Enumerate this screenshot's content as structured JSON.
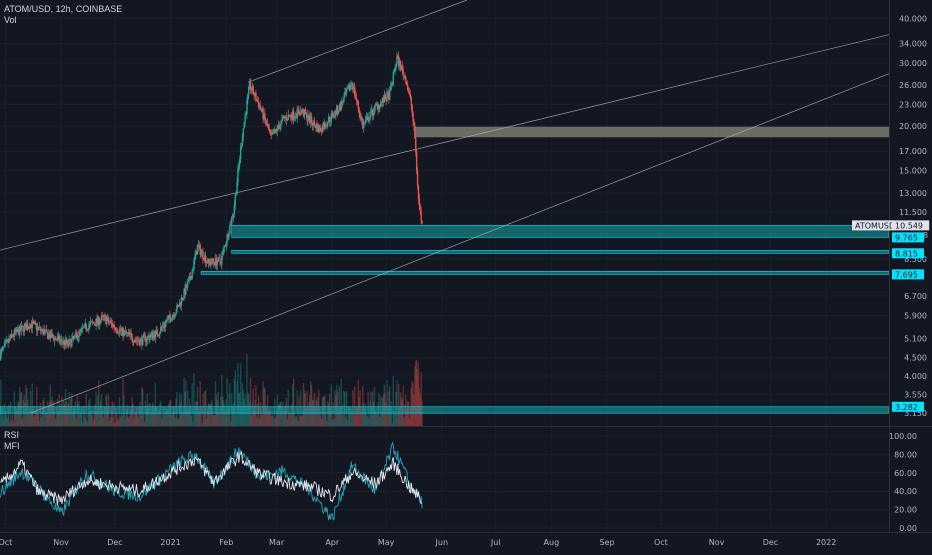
{
  "header": {
    "symbol_line": "ATOM/USD, 12h, COINBASE",
    "volume_label": "Vol"
  },
  "rsi_panel": {
    "rsi_label": "RSI",
    "mfi_label": "MFI"
  },
  "price_axis": {
    "ticks": [
      "40.000",
      "34.000",
      "30.000",
      "26.000",
      "23.000",
      "20.000",
      "17.000",
      "15.000",
      "13.000",
      "11.500",
      "8.500",
      "6.700",
      "5.900",
      "5.100",
      "4.500",
      "4.000",
      "3.550",
      "3.150"
    ],
    "last_price_tag": "ATOMUSD",
    "last_price": "10.549",
    "partial_tag": "8",
    "level_tags": [
      "9.765",
      "8.815",
      "7.695"
    ],
    "low_tag": "3.282",
    "scale": "log"
  },
  "osc_axis": {
    "ticks": [
      "100.00",
      "80.00",
      "60.00",
      "40.00",
      "20.00",
      "0.00"
    ]
  },
  "time_axis": {
    "ticks": [
      "Oct",
      "Nov",
      "Dec",
      "2021",
      "Feb",
      "Mar",
      "Apr",
      "May",
      "Jun",
      "Jul",
      "Aug",
      "Sep",
      "Oct",
      "Nov",
      "Dec",
      "2022"
    ]
  },
  "colors": {
    "background": "#131722",
    "up_candle": "#26a69a",
    "down_candle": "#ef5350",
    "zone_fill": "#19a6a8",
    "zone_label": "#00e5ff",
    "resistance_zone": "#8a8a7a",
    "rsi_line": "#26a6b8",
    "mfi_line": "#e0e3eb"
  },
  "chart_data": {
    "type": "candlestick",
    "price_scale": "log",
    "price_range": [
      2.9,
      45
    ],
    "x_range": [
      "2020-09-28",
      "2022-02-05"
    ],
    "price_path": [
      [
        "2020-09-28",
        4.6
      ],
      [
        "2020-10-05",
        5.2
      ],
      [
        "2020-10-15",
        5.6
      ],
      [
        "2020-10-25",
        5.2
      ],
      [
        "2020-11-05",
        4.9
      ],
      [
        "2020-11-15",
        5.5
      ],
      [
        "2020-11-25",
        5.8
      ],
      [
        "2020-12-05",
        5.3
      ],
      [
        "2020-12-15",
        5.0
      ],
      [
        "2020-12-25",
        5.3
      ],
      [
        "2021-01-05",
        6.2
      ],
      [
        "2021-01-12",
        7.5
      ],
      [
        "2021-01-16",
        9.2
      ],
      [
        "2021-01-22",
        8.3
      ],
      [
        "2021-01-29",
        8.4
      ],
      [
        "2021-02-05",
        11.5
      ],
      [
        "2021-02-10",
        19.0
      ],
      [
        "2021-02-14",
        26.0
      ],
      [
        "2021-02-20",
        22.5
      ],
      [
        "2021-02-26",
        18.5
      ],
      [
        "2021-03-05",
        21.0
      ],
      [
        "2021-03-15",
        22.0
      ],
      [
        "2021-03-25",
        19.5
      ],
      [
        "2021-04-05",
        22.5
      ],
      [
        "2021-04-12",
        26.5
      ],
      [
        "2021-04-18",
        20.0
      ],
      [
        "2021-04-25",
        22.5
      ],
      [
        "2021-05-03",
        24.5
      ],
      [
        "2021-05-07",
        31.0
      ],
      [
        "2021-05-12",
        27.0
      ],
      [
        "2021-05-15",
        23.0
      ],
      [
        "2021-05-17",
        18.5
      ],
      [
        "2021-05-19",
        12.5
      ],
      [
        "2021-05-21",
        10.549
      ]
    ],
    "horizontal_zones": [
      {
        "low": 18.6,
        "high": 19.9,
        "start": "2021-05-17"
      },
      {
        "low": 9.765,
        "high": 10.549,
        "start": "2021-02-04"
      },
      {
        "low": 8.815,
        "high": 8.98,
        "start": "2021-02-04"
      },
      {
        "low": 7.695,
        "high": 7.85,
        "start": "2021-01-18"
      },
      {
        "low": 3.15,
        "high": 3.282,
        "start": "2020-09-28"
      }
    ],
    "trend_lines": [
      {
        "from": [
          "2021-02-13",
          26.5
        ],
        "to": [
          "2021-06-15",
          45
        ]
      },
      {
        "from": [
          "2020-09-28",
          9.0
        ],
        "to": [
          "2022-02-05",
          36.0
        ]
      },
      {
        "from": [
          "2020-10-15",
          3.15
        ],
        "to": [
          "2022-02-05",
          28.0
        ]
      }
    ],
    "rsi_range": [
      0,
      100
    ],
    "rsi_path": [
      [
        "2020-09-28",
        38
      ],
      [
        "2020-10-10",
        62
      ],
      [
        "2020-10-20",
        42
      ],
      [
        "2020-11-01",
        15
      ],
      [
        "2020-11-15",
        60
      ],
      [
        "2020-12-01",
        40
      ],
      [
        "2020-12-15",
        35
      ],
      [
        "2021-01-05",
        70
      ],
      [
        "2021-01-15",
        80
      ],
      [
        "2021-01-25",
        48
      ],
      [
        "2021-02-08",
        85
      ],
      [
        "2021-02-20",
        55
      ],
      [
        "2021-03-05",
        62
      ],
      [
        "2021-03-20",
        40
      ],
      [
        "2021-04-01",
        10
      ],
      [
        "2021-04-12",
        68
      ],
      [
        "2021-04-25",
        40
      ],
      [
        "2021-05-05",
        88
      ],
      [
        "2021-05-15",
        45
      ],
      [
        "2021-05-21",
        28
      ]
    ],
    "mfi_path": [
      [
        "2020-09-28",
        45
      ],
      [
        "2020-10-10",
        70
      ],
      [
        "2020-10-20",
        38
      ],
      [
        "2020-11-01",
        30
      ],
      [
        "2020-11-15",
        52
      ],
      [
        "2020-12-01",
        45
      ],
      [
        "2020-12-15",
        40
      ],
      [
        "2021-01-05",
        65
      ],
      [
        "2021-01-15",
        75
      ],
      [
        "2021-01-25",
        50
      ],
      [
        "2021-02-08",
        78
      ],
      [
        "2021-02-20",
        58
      ],
      [
        "2021-03-05",
        50
      ],
      [
        "2021-03-20",
        45
      ],
      [
        "2021-04-01",
        35
      ],
      [
        "2021-04-12",
        60
      ],
      [
        "2021-04-25",
        48
      ],
      [
        "2021-05-05",
        70
      ],
      [
        "2021-05-15",
        42
      ],
      [
        "2021-05-21",
        30
      ]
    ]
  }
}
